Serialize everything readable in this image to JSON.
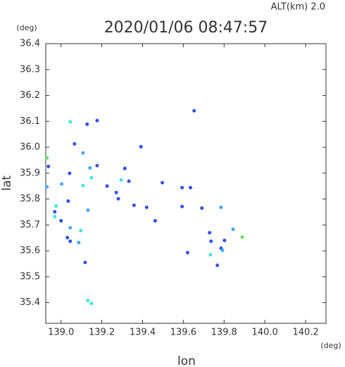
{
  "chart_data": {
    "type": "scatter",
    "title": "2020/01/06 08:47:57",
    "subtitle": "ALT(km) 2.0",
    "y_unit": "(deg)",
    "x_unit": "(deg)",
    "x_label": "lon",
    "y_label": "lat",
    "xlim": [
      138.925,
      140.3
    ],
    "ylim": [
      35.32,
      36.4
    ],
    "xticks": [
      {
        "value": 139,
        "label": "139.0"
      },
      139.2,
      139.4,
      139.6,
      139.8,
      {
        "value": 140,
        "label": "140.0"
      },
      140.2
    ],
    "yticks": [
      36.4,
      36.3,
      36.2,
      36.1,
      {
        "value": 36,
        "label": "36.0"
      },
      35.9,
      35.8,
      35.7,
      35.6,
      35.5,
      35.4
    ],
    "x": [
      139.045,
      139.128,
      139.177,
      139.653,
      139.392,
      139.066,
      139.108,
      138.931,
      138.938,
      139.042,
      139.142,
      139.177,
      139.313,
      139.108,
      139.003,
      139.149,
      139.226,
      139.295,
      139.333,
      139.497,
      139.271,
      139.281,
      139.358,
      139.42,
      139.594,
      139.594,
      139.635,
      138.976,
      138.969,
      138.969,
      139.035,
      139.132,
      139.0,
      139.045,
      139.097,
      139.031,
      139.045,
      139.087,
      139.118,
      139.132,
      139.149,
      139.691,
      139.785,
      139.844,
      139.889,
      139.802,
      139.736,
      139.785,
      139.733,
      139.792,
      139.621,
      139.767,
      139.729,
      139.462,
      138.931
    ],
    "y": [
      36.098,
      36.089,
      36.103,
      36.141,
      36.002,
      36.013,
      35.978,
      35.959,
      35.926,
      35.899,
      35.92,
      35.929,
      35.918,
      35.852,
      35.858,
      35.882,
      35.85,
      35.874,
      35.869,
      35.863,
      35.825,
      35.801,
      35.776,
      35.768,
      35.771,
      35.844,
      35.844,
      35.773,
      35.751,
      35.732,
      35.792,
      35.757,
      35.716,
      35.689,
      35.678,
      35.651,
      35.637,
      35.632,
      35.555,
      35.408,
      35.397,
      35.765,
      35.768,
      35.683,
      35.653,
      35.64,
      35.637,
      35.61,
      35.585,
      35.602,
      35.593,
      35.544,
      35.67,
      35.716,
      35.847
    ],
    "colors": [
      "#40e8d8",
      "#3050f0",
      "#3050f0",
      "#3050f0",
      "#3050f0",
      "#3050f0",
      "#40a8ff",
      "#60e060",
      "#3050f0",
      "#3050f0",
      "#40a8ff",
      "#3050f0",
      "#3050f0",
      "#40e8d8",
      "#40a8ff",
      "#40e8d8",
      "#3050f0",
      "#40e8d8",
      "#3050f0",
      "#3050f0",
      "#3050f0",
      "#3050f0",
      "#3050f0",
      "#3050f0",
      "#3050f0",
      "#3050f0",
      "#3050f0",
      "#40e8d8",
      "#3050f0",
      "#40e8d8",
      "#3050f0",
      "#40a8ff",
      "#3050f0",
      "#40a8ff",
      "#40e8d8",
      "#3050f0",
      "#3050f0",
      "#40a8ff",
      "#3050f0",
      "#40e8d8",
      "#40e8d8",
      "#3050f0",
      "#40a8ff",
      "#40a8ff",
      "#60e060",
      "#3050f0",
      "#3050f0",
      "#3050f0",
      "#40e8d8",
      "#40a8ff",
      "#3050f0",
      "#3050f0",
      "#3050f0",
      "#3050f0",
      "#40a8ff"
    ]
  }
}
